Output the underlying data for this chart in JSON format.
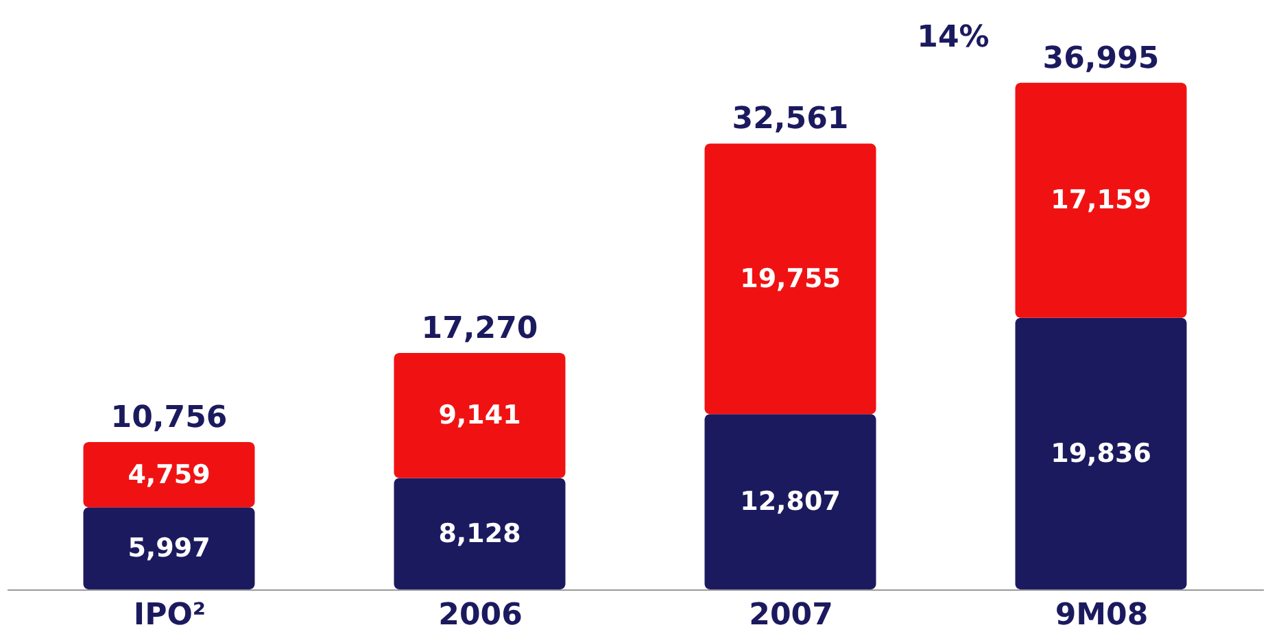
{
  "chart_data": {
    "type": "bar",
    "stacked": true,
    "categories": [
      "IPO²",
      "2006",
      "2007",
      "9M08"
    ],
    "series": [
      {
        "color": "#1c1a5e",
        "values": [
          5997,
          8128,
          12807,
          19836
        ],
        "value_labels": [
          "5,997",
          "8,128",
          "12,807",
          "19,836"
        ]
      },
      {
        "color": "#f01212",
        "values": [
          4759,
          9141,
          19755,
          17159
        ],
        "value_labels": [
          "4,759",
          "9,141",
          "19,755",
          "17,159"
        ]
      }
    ],
    "totals": [
      "10,756",
      "17,270",
      "32,561",
      "36,995"
    ],
    "annotations": [
      "14%"
    ]
  }
}
